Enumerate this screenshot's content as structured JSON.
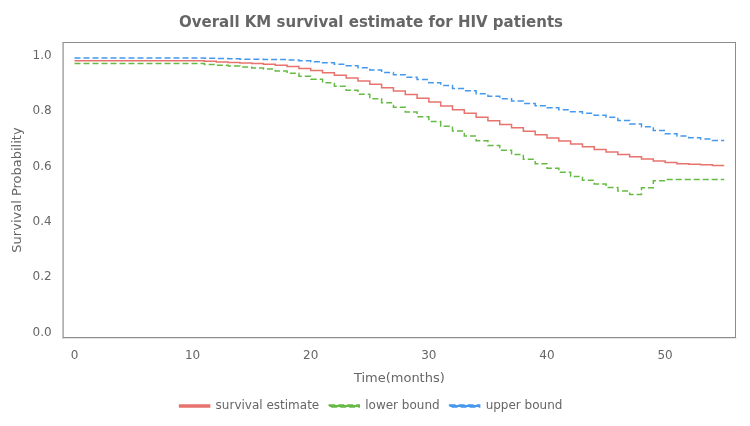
{
  "chart_data": {
    "type": "line",
    "title": "Overall KM survival estimate for HIV patients",
    "x_label": "Time(months)",
    "y_label": "Survival Probability",
    "x": [
      0,
      1,
      2,
      3,
      4,
      5,
      6,
      7,
      8,
      9,
      10,
      11,
      12,
      13,
      14,
      15,
      16,
      17,
      18,
      19,
      20,
      21,
      22,
      23,
      24,
      25,
      26,
      27,
      28,
      29,
      30,
      31,
      32,
      33,
      34,
      35,
      36,
      37,
      38,
      39,
      40,
      41,
      42,
      43,
      44,
      45,
      46,
      47,
      48,
      49,
      50,
      51,
      52,
      53,
      54,
      55
    ],
    "series": [
      {
        "name": "survival estimate",
        "color": "#E8736C",
        "line_style": "solid",
        "values": [
          0.982,
          0.982,
          0.982,
          0.982,
          0.982,
          0.982,
          0.982,
          0.982,
          0.982,
          0.982,
          0.982,
          0.982,
          0.98,
          0.978,
          0.976,
          0.974,
          0.972,
          0.97,
          0.966,
          0.961,
          0.954,
          0.947,
          0.939,
          0.93,
          0.92,
          0.909,
          0.897,
          0.885,
          0.873,
          0.86,
          0.847,
          0.833,
          0.819,
          0.805,
          0.792,
          0.778,
          0.765,
          0.752,
          0.74,
          0.727,
          0.715,
          0.703,
          0.692,
          0.681,
          0.671,
          0.661,
          0.652,
          0.643,
          0.635,
          0.627,
          0.62,
          0.614,
          0.61,
          0.608,
          0.606,
          0.604
        ]
      },
      {
        "name": "lower bound",
        "color": "#66BB44",
        "line_style": "dashed",
        "values": [
          0.972,
          0.972,
          0.972,
          0.972,
          0.972,
          0.972,
          0.972,
          0.972,
          0.972,
          0.972,
          0.972,
          0.972,
          0.969,
          0.966,
          0.963,
          0.96,
          0.956,
          0.952,
          0.945,
          0.937,
          0.926,
          0.915,
          0.903,
          0.89,
          0.876,
          0.861,
          0.845,
          0.83,
          0.814,
          0.797,
          0.78,
          0.763,
          0.745,
          0.728,
          0.71,
          0.693,
          0.676,
          0.659,
          0.643,
          0.626,
          0.61,
          0.594,
          0.579,
          0.564,
          0.55,
          0.537,
          0.524,
          0.511,
          0.499,
          0.523,
          0.548,
          0.553,
          0.553,
          0.553,
          0.553,
          0.553
        ]
      },
      {
        "name": "upper bound",
        "color": "#4499EE",
        "line_style": "dashed",
        "values": [
          0.992,
          0.992,
          0.992,
          0.992,
          0.992,
          0.992,
          0.992,
          0.992,
          0.992,
          0.992,
          0.992,
          0.992,
          0.991,
          0.99,
          0.989,
          0.988,
          0.988,
          0.987,
          0.987,
          0.985,
          0.982,
          0.979,
          0.975,
          0.97,
          0.964,
          0.957,
          0.949,
          0.94,
          0.932,
          0.923,
          0.914,
          0.903,
          0.893,
          0.882,
          0.874,
          0.863,
          0.854,
          0.845,
          0.837,
          0.828,
          0.82,
          0.812,
          0.805,
          0.798,
          0.792,
          0.785,
          0.778,
          0.766,
          0.754,
          0.744,
          0.73,
          0.718,
          0.71,
          0.704,
          0.699,
          0.694
        ]
      }
    ],
    "xlim": [
      -1,
      56
    ],
    "ylim": [
      -0.02,
      1.05
    ],
    "xticks": [
      0,
      10,
      20,
      30,
      40,
      50
    ],
    "yticks": [
      {
        "value": 0.0,
        "label": "0.0"
      },
      0.2,
      0.4,
      0.6,
      0.8,
      {
        "value": 1.0,
        "label": "1.0"
      }
    ],
    "grid": false,
    "legend": "bottom"
  }
}
